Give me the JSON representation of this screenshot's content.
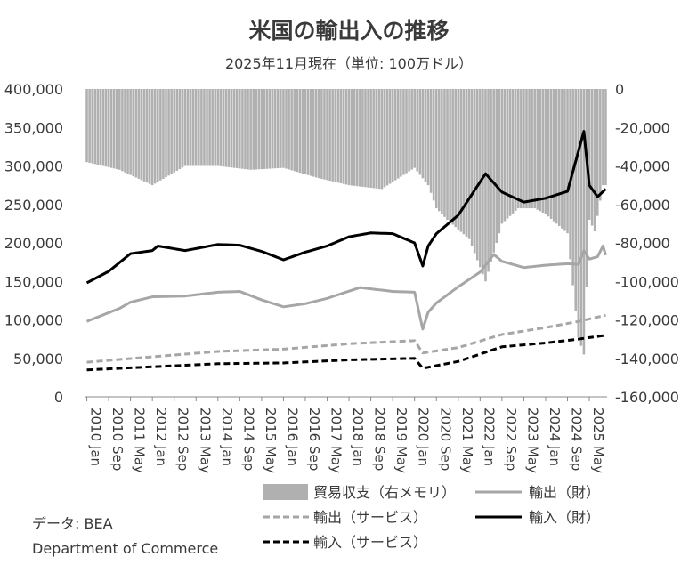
{
  "chart_data": {
    "type": "line+bar",
    "title": "米国の輸出入の推移",
    "subtitle": "2025年11月現在（単位: 100万ドル）",
    "left_axis": {
      "min": 0,
      "max": 400000,
      "ticks": [
        "0",
        "50,000",
        "100,000",
        "150,000",
        "200,000",
        "250,000",
        "300,000",
        "350,000",
        "400,000"
      ]
    },
    "right_axis": {
      "min": -160000,
      "max": 0,
      "ticks": [
        "-160,000",
        "-140,000",
        "-120,000",
        "-100,000",
        "-80,000",
        "-60,000",
        "-40,000",
        "-20,000",
        "0"
      ]
    },
    "x_range": [
      "2010-01",
      "2025-11"
    ],
    "x_tick_labels": [
      "2010 Jan",
      "2010 Sep",
      "2011 May",
      "2012 Jan",
      "2012 Sep",
      "2013 May",
      "2014 Jan",
      "2014 Sep",
      "2015 May",
      "2016 Jan",
      "2016 Sep",
      "2017 May",
      "2018 Jan",
      "2018 Sep",
      "2019 May",
      "2020 Jan",
      "2020 Sep",
      "2021 May",
      "2022 Jan",
      "2022 Sep",
      "2023 May",
      "2024 Jan",
      "2024 Sep",
      "2025 May"
    ],
    "series": [
      {
        "name": "貿易収支（右メモリ）",
        "type": "bar",
        "axis": "right",
        "color": "#b0b0b0",
        "points": [
          [
            "2010-01",
            -38000
          ],
          [
            "2011-01",
            -42000
          ],
          [
            "2012-01",
            -50000
          ],
          [
            "2013-01",
            -40000
          ],
          [
            "2014-01",
            -40000
          ],
          [
            "2015-01",
            -42000
          ],
          [
            "2016-01",
            -41000
          ],
          [
            "2017-01",
            -46000
          ],
          [
            "2018-01",
            -50000
          ],
          [
            "2019-01",
            -52000
          ],
          [
            "2020-01",
            -41000
          ],
          [
            "2020-06",
            -50000
          ],
          [
            "2020-09",
            -62000
          ],
          [
            "2021-01",
            -68000
          ],
          [
            "2021-09",
            -78000
          ],
          [
            "2022-03",
            -100000
          ],
          [
            "2022-09",
            -70000
          ],
          [
            "2023-03",
            -62000
          ],
          [
            "2023-09",
            -62000
          ],
          [
            "2024-01",
            -65000
          ],
          [
            "2024-09",
            -75000
          ],
          [
            "2025-01",
            -129000
          ],
          [
            "2025-03",
            -138000
          ],
          [
            "2025-05",
            -68000
          ],
          [
            "2025-07",
            -74000
          ],
          [
            "2025-10",
            -50000
          ]
        ]
      },
      {
        "name": "輸出（財）",
        "type": "line",
        "axis": "left",
        "color": "#a6a6a6",
        "dash": "solid",
        "points": [
          [
            "2010-01",
            98000
          ],
          [
            "2011-01",
            115000
          ],
          [
            "2011-05",
            123000
          ],
          [
            "2012-01",
            130000
          ],
          [
            "2013-01",
            131000
          ],
          [
            "2014-01",
            136000
          ],
          [
            "2014-09",
            137000
          ],
          [
            "2015-05",
            126000
          ],
          [
            "2016-01",
            117000
          ],
          [
            "2016-09",
            121000
          ],
          [
            "2017-05",
            128000
          ],
          [
            "2018-05",
            142000
          ],
          [
            "2019-05",
            137000
          ],
          [
            "2020-01",
            136000
          ],
          [
            "2020-04",
            88000
          ],
          [
            "2020-06",
            110000
          ],
          [
            "2020-09",
            122000
          ],
          [
            "2021-05",
            143000
          ],
          [
            "2022-01",
            162000
          ],
          [
            "2022-06",
            185000
          ],
          [
            "2022-09",
            176000
          ],
          [
            "2023-05",
            168000
          ],
          [
            "2024-01",
            171000
          ],
          [
            "2024-09",
            173000
          ],
          [
            "2025-01",
            172000
          ],
          [
            "2025-03",
            190000
          ],
          [
            "2025-05",
            179000
          ],
          [
            "2025-08",
            182000
          ],
          [
            "2025-10",
            196000
          ],
          [
            "2025-11",
            184000
          ]
        ]
      },
      {
        "name": "輸出（サービス）",
        "type": "line",
        "axis": "left",
        "color": "#a6a6a6",
        "dash": "dashed",
        "points": [
          [
            "2010-01",
            45000
          ],
          [
            "2012-01",
            52000
          ],
          [
            "2014-01",
            59000
          ],
          [
            "2016-01",
            62000
          ],
          [
            "2018-01",
            69000
          ],
          [
            "2020-01",
            73000
          ],
          [
            "2020-04",
            57000
          ],
          [
            "2021-05",
            64000
          ],
          [
            "2022-09",
            81000
          ],
          [
            "2024-01",
            90000
          ],
          [
            "2025-01",
            98000
          ],
          [
            "2025-11",
            106000
          ]
        ]
      },
      {
        "name": "輸入（財）",
        "type": "line",
        "axis": "left",
        "color": "#000000",
        "dash": "solid",
        "points": [
          [
            "2010-01",
            148000
          ],
          [
            "2010-09",
            163000
          ],
          [
            "2011-05",
            186000
          ],
          [
            "2012-01",
            190000
          ],
          [
            "2012-03",
            196000
          ],
          [
            "2013-01",
            190000
          ],
          [
            "2014-01",
            198000
          ],
          [
            "2014-09",
            197000
          ],
          [
            "2015-05",
            189000
          ],
          [
            "2016-01",
            178000
          ],
          [
            "2016-09",
            188000
          ],
          [
            "2017-05",
            196000
          ],
          [
            "2018-01",
            208000
          ],
          [
            "2018-09",
            213000
          ],
          [
            "2019-05",
            212000
          ],
          [
            "2020-01",
            200000
          ],
          [
            "2020-04",
            170000
          ],
          [
            "2020-06",
            196000
          ],
          [
            "2020-09",
            212000
          ],
          [
            "2021-05",
            236000
          ],
          [
            "2022-03",
            290000
          ],
          [
            "2022-09",
            266000
          ],
          [
            "2023-05",
            253000
          ],
          [
            "2024-01",
            258000
          ],
          [
            "2024-09",
            267000
          ],
          [
            "2025-03",
            345000
          ],
          [
            "2025-05",
            275000
          ],
          [
            "2025-08",
            260000
          ],
          [
            "2025-11",
            270000
          ]
        ]
      },
      {
        "name": "輸入（サービス）",
        "type": "line",
        "axis": "left",
        "color": "#000000",
        "dash": "dashed",
        "points": [
          [
            "2010-01",
            35000
          ],
          [
            "2012-01",
            39000
          ],
          [
            "2014-01",
            43000
          ],
          [
            "2016-01",
            44000
          ],
          [
            "2018-01",
            48000
          ],
          [
            "2020-01",
            50000
          ],
          [
            "2020-04",
            37000
          ],
          [
            "2021-05",
            46000
          ],
          [
            "2022-09",
            65000
          ],
          [
            "2024-01",
            70000
          ],
          [
            "2025-01",
            75000
          ],
          [
            "2025-11",
            80000
          ]
        ]
      }
    ],
    "source": [
      "データ: BEA",
      "Department of Commerce"
    ]
  }
}
